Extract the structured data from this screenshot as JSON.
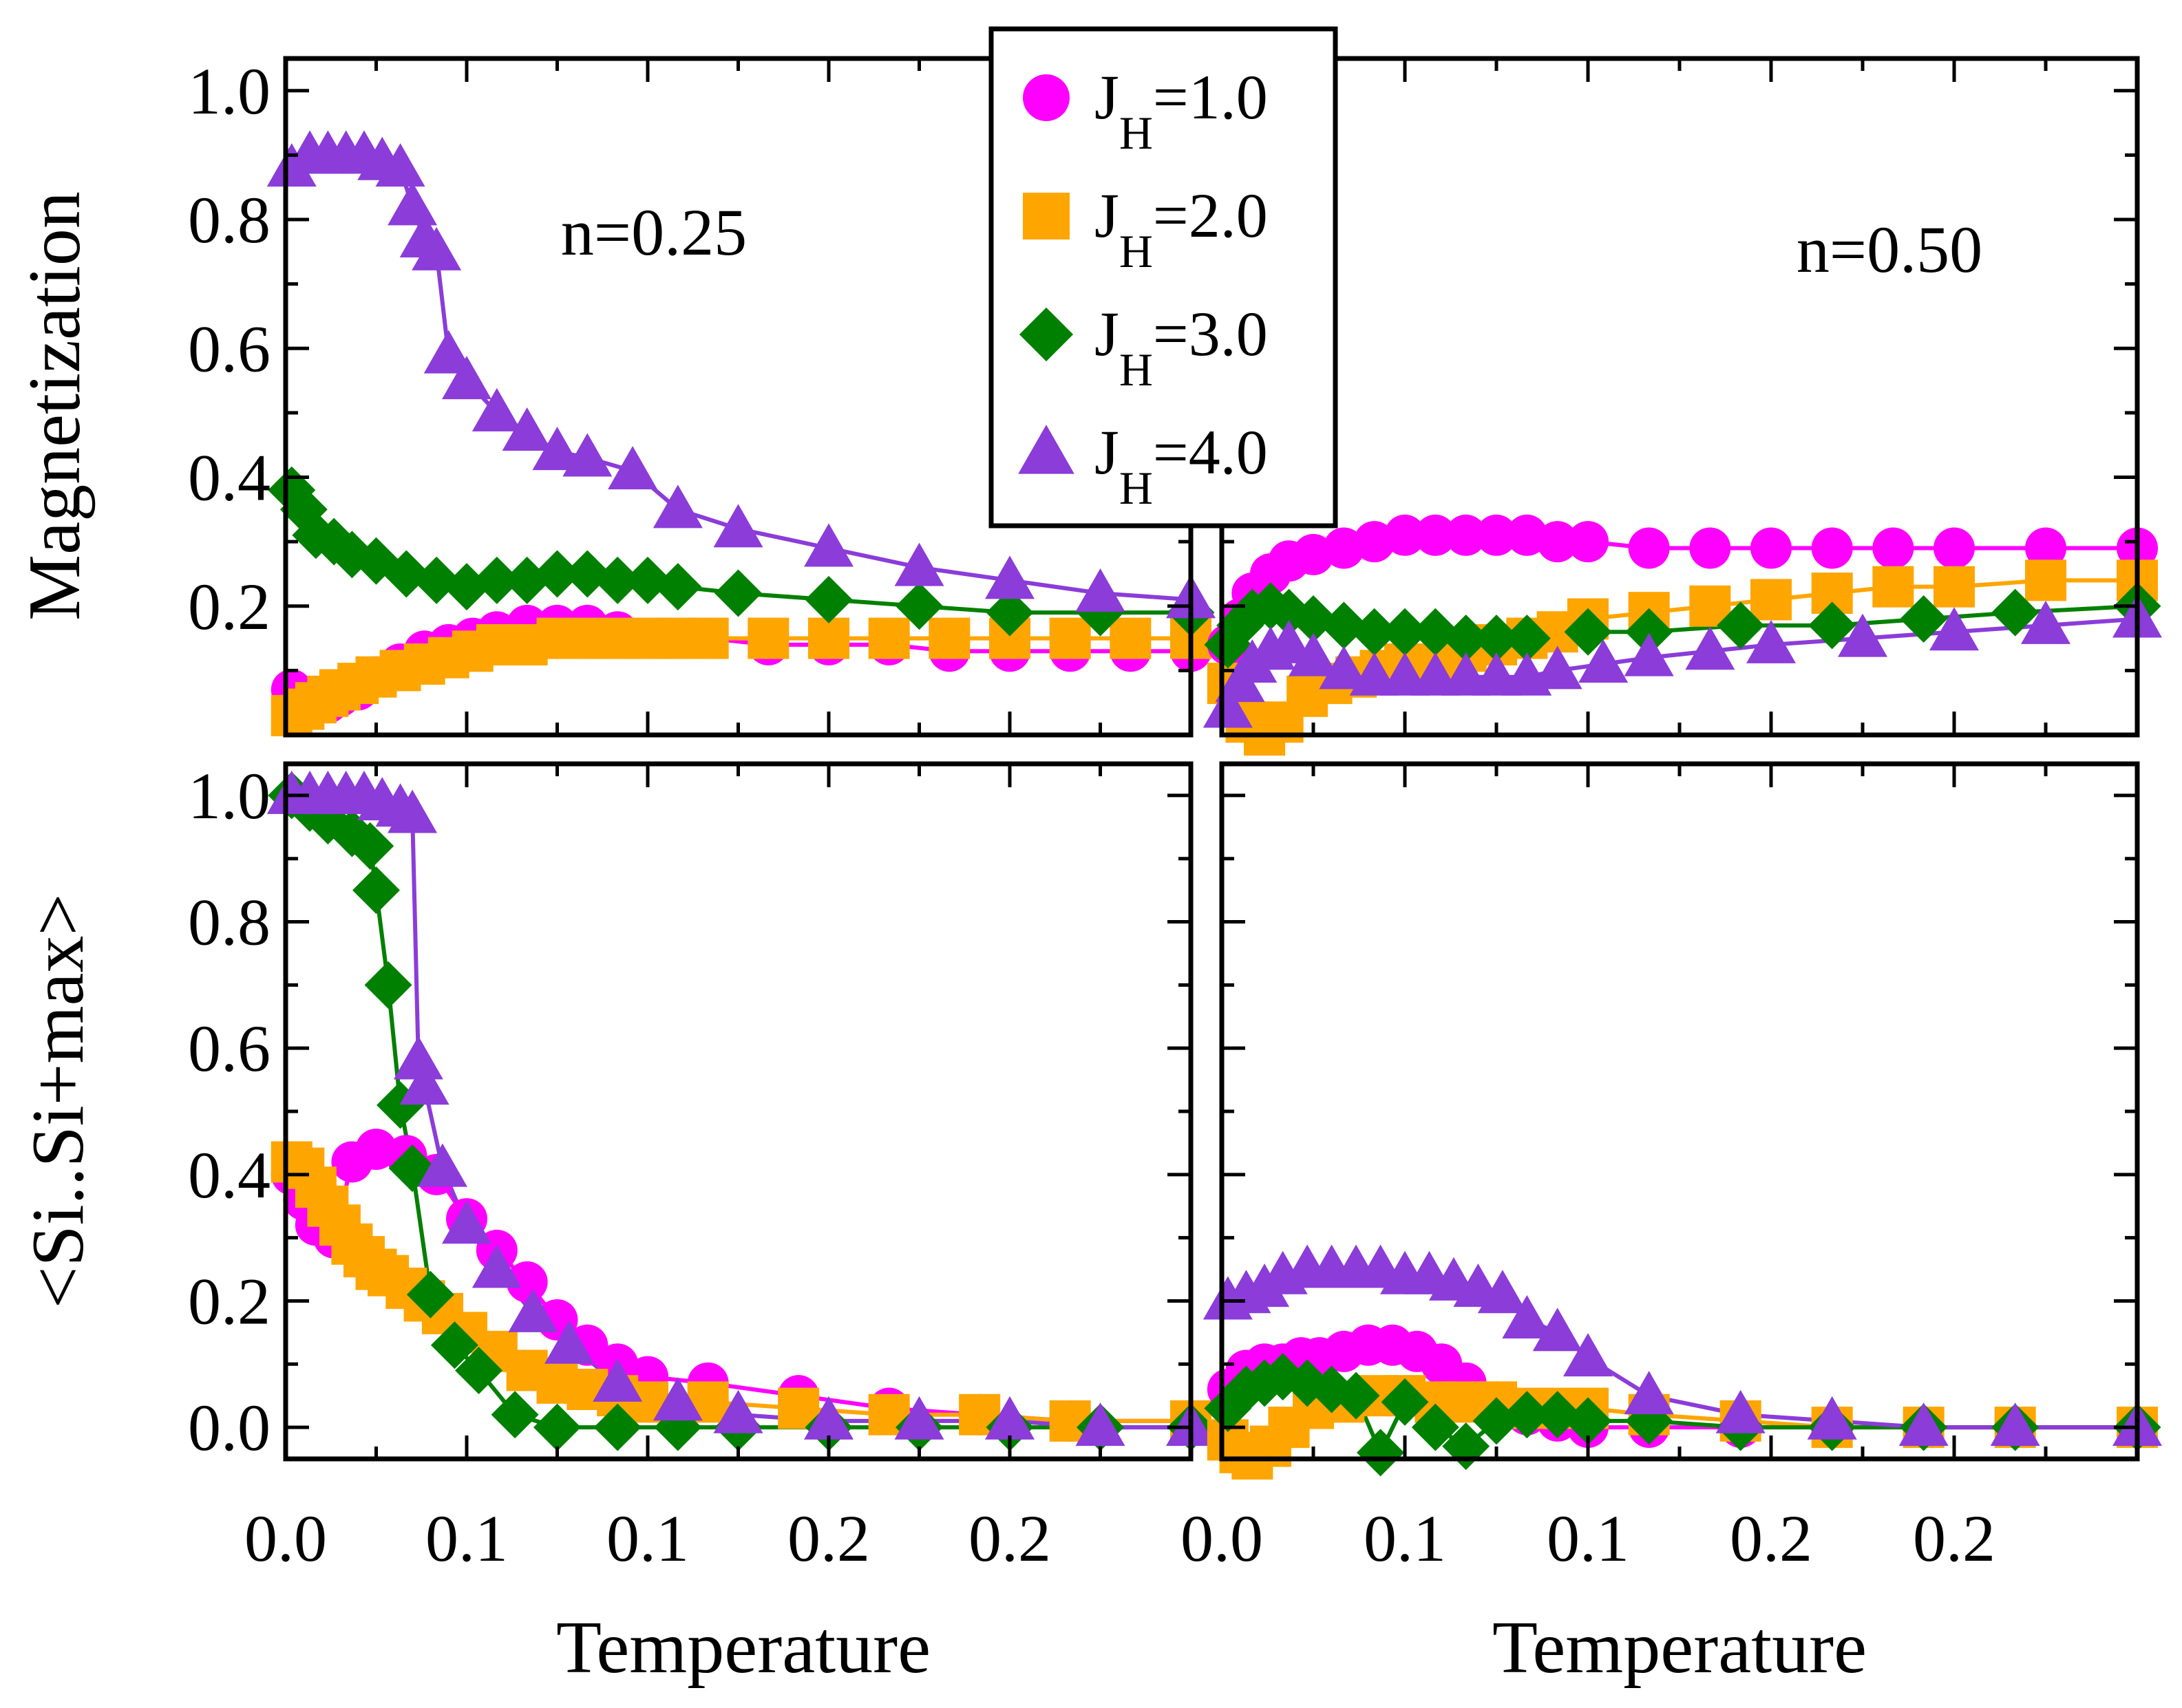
{
  "chart_data": [
    {
      "type": "line",
      "panel": "top-left",
      "ylabel": "Magnetization",
      "annotation": "n=0.25",
      "xlabel": "",
      "xlim": [
        0,
        0.3
      ],
      "ylim": [
        0,
        1.05
      ],
      "xtick_values": [
        0,
        0.06,
        0.12,
        0.18,
        0.24
      ],
      "xtick_labels": [
        "",
        "",
        "",
        "",
        ""
      ],
      "ytick_values": [
        0.2,
        0.4,
        0.6,
        0.8,
        1.0
      ],
      "ytick_labels": [
        "0.2",
        "0.4",
        "0.6",
        "0.8",
        "1.0"
      ],
      "series": [
        {
          "name": "J_H=1.0",
          "x": [
            0.002,
            0.006,
            0.01,
            0.014,
            0.018,
            0.024,
            0.03,
            0.038,
            0.046,
            0.054,
            0.062,
            0.07,
            0.08,
            0.09,
            0.1,
            0.11,
            0.12,
            0.14,
            0.16,
            0.18,
            0.2,
            0.22,
            0.24,
            0.26,
            0.28,
            0.3
          ],
          "y": [
            0.07,
            0.06,
            0.05,
            0.05,
            0.06,
            0.07,
            0.09,
            0.11,
            0.13,
            0.14,
            0.15,
            0.16,
            0.17,
            0.17,
            0.17,
            0.16,
            0.15,
            0.15,
            0.14,
            0.14,
            0.14,
            0.13,
            0.13,
            0.13,
            0.13,
            0.13
          ]
        },
        {
          "name": "J_H=2.0",
          "x": [
            0.002,
            0.006,
            0.01,
            0.014,
            0.018,
            0.024,
            0.03,
            0.038,
            0.046,
            0.054,
            0.062,
            0.07,
            0.08,
            0.09,
            0.1,
            0.11,
            0.12,
            0.13,
            0.14,
            0.16,
            0.18,
            0.2,
            0.22,
            0.24,
            0.26,
            0.28,
            0.3
          ],
          "y": [
            0.03,
            0.04,
            0.05,
            0.06,
            0.07,
            0.08,
            0.09,
            0.1,
            0.11,
            0.12,
            0.13,
            0.14,
            0.14,
            0.15,
            0.15,
            0.15,
            0.15,
            0.15,
            0.15,
            0.15,
            0.15,
            0.15,
            0.15,
            0.15,
            0.15,
            0.15,
            0.15
          ]
        },
        {
          "name": "J_H=3.0",
          "x": [
            0.002,
            0.006,
            0.01,
            0.016,
            0.022,
            0.03,
            0.04,
            0.05,
            0.06,
            0.07,
            0.08,
            0.09,
            0.1,
            0.11,
            0.12,
            0.13,
            0.15,
            0.18,
            0.21,
            0.24,
            0.27,
            0.3
          ],
          "y": [
            0.38,
            0.35,
            0.31,
            0.3,
            0.28,
            0.27,
            0.25,
            0.24,
            0.23,
            0.24,
            0.24,
            0.25,
            0.25,
            0.24,
            0.24,
            0.23,
            0.22,
            0.21,
            0.2,
            0.19,
            0.19,
            0.19
          ]
        },
        {
          "name": "J_H=4.0",
          "x": [
            0.002,
            0.008,
            0.014,
            0.02,
            0.026,
            0.032,
            0.038,
            0.042,
            0.046,
            0.05,
            0.054,
            0.06,
            0.07,
            0.08,
            0.09,
            0.1,
            0.115,
            0.13,
            0.15,
            0.18,
            0.21,
            0.24,
            0.27,
            0.3
          ],
          "y": [
            0.88,
            0.9,
            0.9,
            0.9,
            0.9,
            0.89,
            0.88,
            0.82,
            0.77,
            0.75,
            0.59,
            0.55,
            0.5,
            0.47,
            0.44,
            0.43,
            0.41,
            0.35,
            0.32,
            0.29,
            0.26,
            0.24,
            0.22,
            0.21
          ]
        }
      ]
    },
    {
      "type": "line",
      "panel": "top-right",
      "ylabel": "",
      "annotation": "n=0.50",
      "xlabel": "",
      "xlim": [
        0,
        0.3
      ],
      "ylim": [
        0,
        1.05
      ],
      "xtick_values": [
        0,
        0.06,
        0.12,
        0.18,
        0.24
      ],
      "xtick_labels": [
        "",
        "",
        "",
        "",
        ""
      ],
      "ytick_values": [
        0.2,
        0.4,
        0.6,
        0.8,
        1.0
      ],
      "ytick_labels": [
        "",
        "",
        "",
        "",
        ""
      ],
      "series": [
        {
          "name": "J_H=1.0",
          "x": [
            0.002,
            0.006,
            0.01,
            0.016,
            0.022,
            0.03,
            0.04,
            0.05,
            0.06,
            0.07,
            0.08,
            0.09,
            0.1,
            0.11,
            0.12,
            0.14,
            0.16,
            0.18,
            0.2,
            0.22,
            0.24,
            0.27,
            0.3
          ],
          "y": [
            0.14,
            0.18,
            0.22,
            0.25,
            0.27,
            0.28,
            0.29,
            0.3,
            0.31,
            0.31,
            0.31,
            0.31,
            0.31,
            0.3,
            0.3,
            0.29,
            0.29,
            0.29,
            0.29,
            0.29,
            0.29,
            0.29,
            0.29
          ]
        },
        {
          "name": "J_H=2.0",
          "x": [
            0.002,
            0.008,
            0.014,
            0.02,
            0.028,
            0.036,
            0.044,
            0.052,
            0.06,
            0.07,
            0.08,
            0.09,
            0.1,
            0.11,
            0.12,
            0.14,
            0.16,
            0.18,
            0.2,
            0.22,
            0.24,
            0.27,
            0.3
          ],
          "y": [
            0.08,
            0.02,
            0.0,
            0.02,
            0.06,
            0.08,
            0.09,
            0.1,
            0.11,
            0.11,
            0.13,
            0.14,
            0.15,
            0.16,
            0.18,
            0.19,
            0.2,
            0.21,
            0.22,
            0.23,
            0.23,
            0.24,
            0.24
          ]
        },
        {
          "name": "J_H=3.0",
          "x": [
            0.002,
            0.006,
            0.01,
            0.016,
            0.022,
            0.03,
            0.04,
            0.05,
            0.06,
            0.07,
            0.08,
            0.09,
            0.1,
            0.12,
            0.14,
            0.17,
            0.2,
            0.23,
            0.26,
            0.3
          ],
          "y": [
            0.14,
            0.17,
            0.19,
            0.2,
            0.19,
            0.18,
            0.17,
            0.16,
            0.16,
            0.16,
            0.15,
            0.15,
            0.15,
            0.16,
            0.16,
            0.17,
            0.17,
            0.18,
            0.19,
            0.2
          ]
        },
        {
          "name": "J_H=4.0",
          "x": [
            0.002,
            0.006,
            0.01,
            0.016,
            0.022,
            0.03,
            0.04,
            0.05,
            0.06,
            0.07,
            0.08,
            0.09,
            0.1,
            0.11,
            0.125,
            0.14,
            0.16,
            0.18,
            0.21,
            0.24,
            0.27,
            0.3
          ],
          "y": [
            0.04,
            0.08,
            0.11,
            0.13,
            0.14,
            0.12,
            0.1,
            0.09,
            0.09,
            0.09,
            0.09,
            0.09,
            0.09,
            0.1,
            0.11,
            0.12,
            0.13,
            0.14,
            0.15,
            0.16,
            0.17,
            0.18
          ]
        }
      ]
    },
    {
      "type": "line",
      "panel": "bottom-left",
      "ylabel": "<Si..Si+max>",
      "annotation": "",
      "xlabel": "Temperature",
      "xlim": [
        0,
        0.3
      ],
      "ylim": [
        -0.05,
        1.05
      ],
      "xtick_values": [
        0,
        0.06,
        0.12,
        0.18,
        0.24
      ],
      "xtick_labels": [
        "0.0",
        "0.1",
        "0.1",
        "0.2",
        "0.2"
      ],
      "ytick_values": [
        0.0,
        0.2,
        0.4,
        0.6,
        0.8,
        1.0
      ],
      "ytick_labels": [
        "0.0",
        "0.2",
        "0.4",
        "0.6",
        "0.8",
        "1.0"
      ],
      "series": [
        {
          "name": "J_H=1.0",
          "x": [
            0.002,
            0.006,
            0.01,
            0.016,
            0.022,
            0.03,
            0.04,
            0.05,
            0.06,
            0.07,
            0.08,
            0.09,
            0.1,
            0.11,
            0.12,
            0.14,
            0.17,
            0.2,
            0.23,
            0.26,
            0.3
          ],
          "y": [
            0.4,
            0.36,
            0.32,
            0.3,
            0.42,
            0.44,
            0.43,
            0.4,
            0.33,
            0.28,
            0.23,
            0.17,
            0.13,
            0.1,
            0.08,
            0.07,
            0.05,
            0.03,
            0.02,
            0.01,
            0.01
          ]
        },
        {
          "name": "J_H=2.0",
          "x": [
            0.002,
            0.006,
            0.01,
            0.014,
            0.018,
            0.022,
            0.026,
            0.03,
            0.034,
            0.04,
            0.046,
            0.052,
            0.06,
            0.07,
            0.08,
            0.09,
            0.1,
            0.11,
            0.12,
            0.14,
            0.17,
            0.2,
            0.23,
            0.26,
            0.3
          ],
          "y": [
            0.42,
            0.41,
            0.38,
            0.35,
            0.32,
            0.29,
            0.27,
            0.25,
            0.24,
            0.22,
            0.2,
            0.18,
            0.15,
            0.12,
            0.09,
            0.07,
            0.06,
            0.05,
            0.04,
            0.04,
            0.03,
            0.02,
            0.02,
            0.01,
            0.01
          ]
        },
        {
          "name": "J_H=3.0",
          "x": [
            0.002,
            0.008,
            0.014,
            0.022,
            0.028,
            0.03,
            0.034,
            0.038,
            0.042,
            0.048,
            0.056,
            0.064,
            0.076,
            0.09,
            0.11,
            0.13,
            0.15,
            0.18,
            0.21,
            0.24,
            0.27,
            0.3
          ],
          "y": [
            1.0,
            0.98,
            0.96,
            0.94,
            0.92,
            0.85,
            0.7,
            0.51,
            0.41,
            0.21,
            0.13,
            0.09,
            0.02,
            0.0,
            0.0,
            0.0,
            0.0,
            0.0,
            0.0,
            0.0,
            0.0,
            0.0
          ]
        },
        {
          "name": "J_H=4.0",
          "x": [
            0.002,
            0.008,
            0.014,
            0.02,
            0.026,
            0.032,
            0.038,
            0.042,
            0.044,
            0.046,
            0.052,
            0.06,
            0.07,
            0.082,
            0.094,
            0.11,
            0.13,
            0.15,
            0.18,
            0.21,
            0.24,
            0.27,
            0.3
          ],
          "y": [
            1.0,
            1.0,
            1.0,
            1.0,
            1.0,
            0.99,
            0.98,
            0.97,
            0.58,
            0.54,
            0.41,
            0.32,
            0.25,
            0.18,
            0.13,
            0.07,
            0.04,
            0.02,
            0.01,
            0.01,
            0.01,
            0.0,
            0.0
          ]
        }
      ]
    },
    {
      "type": "line",
      "panel": "bottom-right",
      "ylabel": "",
      "annotation": "",
      "xlabel": "Temperature",
      "xlim": [
        0,
        0.3
      ],
      "ylim": [
        -0.05,
        1.05
      ],
      "xtick_values": [
        0,
        0.06,
        0.12,
        0.18,
        0.24
      ],
      "xtick_labels": [
        "0.0",
        "0.1",
        "0.1",
        "0.2",
        "0.2"
      ],
      "ytick_values": [
        0.0,
        0.2,
        0.4,
        0.6,
        0.8,
        1.0
      ],
      "ytick_labels": [
        "",
        "",
        "",
        "",
        "",
        ""
      ],
      "series": [
        {
          "name": "J_H=1.0",
          "x": [
            0.002,
            0.008,
            0.014,
            0.02,
            0.026,
            0.032,
            0.04,
            0.048,
            0.056,
            0.064,
            0.072,
            0.08,
            0.09,
            0.1,
            0.11,
            0.12,
            0.14,
            0.17,
            0.2,
            0.23,
            0.26,
            0.3
          ],
          "y": [
            0.06,
            0.09,
            0.1,
            0.1,
            0.11,
            0.11,
            0.12,
            0.13,
            0.13,
            0.12,
            0.1,
            0.07,
            0.04,
            0.02,
            0.01,
            0.0,
            0.0,
            0.0,
            0.0,
            0.0,
            0.0,
            0.0
          ]
        },
        {
          "name": "J_H=2.0",
          "x": [
            0.002,
            0.006,
            0.01,
            0.016,
            0.022,
            0.03,
            0.04,
            0.05,
            0.06,
            0.07,
            0.08,
            0.09,
            0.1,
            0.11,
            0.12,
            0.14,
            0.17,
            0.2,
            0.23,
            0.26,
            0.3
          ],
          "y": [
            -0.02,
            -0.04,
            -0.05,
            -0.03,
            0.0,
            0.03,
            0.04,
            0.05,
            0.05,
            0.04,
            0.04,
            0.04,
            0.03,
            0.03,
            0.03,
            0.02,
            0.01,
            0.0,
            0.0,
            0.0,
            0.0
          ]
        },
        {
          "name": "J_H=3.0",
          "x": [
            0.002,
            0.008,
            0.014,
            0.02,
            0.028,
            0.036,
            0.044,
            0.052,
            0.06,
            0.07,
            0.08,
            0.09,
            0.1,
            0.11,
            0.12,
            0.14,
            0.17,
            0.2,
            0.23,
            0.26,
            0.3
          ],
          "y": [
            0.03,
            0.06,
            0.07,
            0.08,
            0.07,
            0.06,
            0.05,
            -0.04,
            0.04,
            0.0,
            -0.03,
            0.01,
            0.02,
            0.02,
            0.01,
            0.01,
            0.0,
            0.0,
            0.0,
            0.0,
            0.0
          ]
        },
        {
          "name": "J_H=4.0",
          "x": [
            0.002,
            0.008,
            0.014,
            0.02,
            0.028,
            0.036,
            0.044,
            0.052,
            0.06,
            0.068,
            0.076,
            0.084,
            0.092,
            0.1,
            0.11,
            0.12,
            0.14,
            0.17,
            0.2,
            0.23,
            0.26,
            0.3
          ],
          "y": [
            0.2,
            0.21,
            0.22,
            0.24,
            0.25,
            0.25,
            0.25,
            0.25,
            0.24,
            0.24,
            0.23,
            0.22,
            0.21,
            0.17,
            0.15,
            0.11,
            0.05,
            0.02,
            0.01,
            0.0,
            0.0,
            0.0
          ]
        }
      ]
    }
  ],
  "legend": {
    "placement": "top-center",
    "entries": [
      {
        "symbol": "J",
        "sub": "H",
        "value": "=1.0",
        "color": "#ff00ff",
        "marker": "circle"
      },
      {
        "symbol": "J",
        "sub": "H",
        "value": "=2.0",
        "color": "#ffa500",
        "marker": "square"
      },
      {
        "symbol": "J",
        "sub": "H",
        "value": "=3.0",
        "color": "#008000",
        "marker": "diamond"
      },
      {
        "symbol": "J",
        "sub": "H",
        "value": "=4.0",
        "color": "#8b3cd9",
        "marker": "triangle"
      }
    ]
  },
  "colors": {
    "J_H=1.0": "#ff00ff",
    "J_H=2.0": "#ffa500",
    "J_H=3.0": "#008000",
    "J_H=4.0": "#8b3cd9"
  }
}
